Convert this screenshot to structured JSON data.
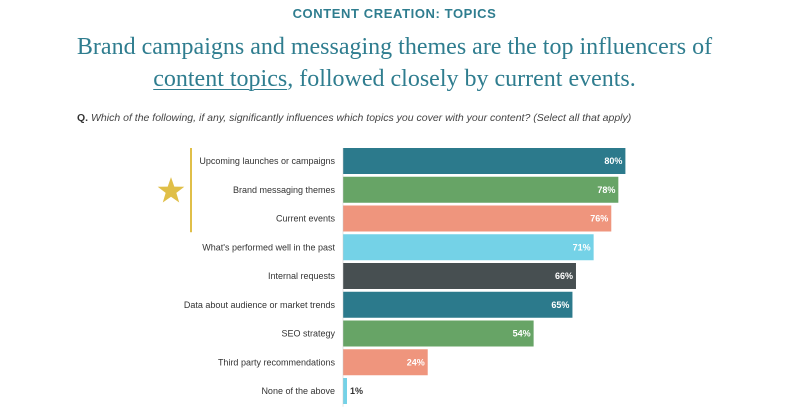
{
  "header": {
    "eyebrow": "CONTENT CREATION: TOPICS",
    "headline_line1": "Brand campaigns and messaging themes are the top influencers of",
    "headline_link": "content topics",
    "headline_line2_rest": ", followed closely by current events."
  },
  "question": {
    "prefix": "Q.",
    "text": "Which of the following, if any, significantly influences which topics you cover with your content? (Select all that apply)"
  },
  "colors": {
    "teal": "#2c7a8c",
    "green": "#67a466",
    "salmon": "#ef957d",
    "light_blue": "#74d2e7",
    "slate": "#474f51",
    "gold": "#e0bf48"
  },
  "icons": {
    "highlight": "star-icon"
  },
  "chart_data": {
    "type": "bar",
    "orientation": "horizontal",
    "unit": "%",
    "xlim": [
      0,
      100
    ],
    "categories": [
      "Upcoming launches or campaigns",
      "Brand messaging themes",
      "Current events",
      "What's performed well in the past",
      "Internal requests",
      "Data about audience or market trends",
      "SEO strategy",
      "Third party recommendations",
      "None of the above"
    ],
    "values": [
      80,
      78,
      76,
      71,
      66,
      65,
      54,
      24,
      1
    ],
    "labels": [
      "80%",
      "78%",
      "76%",
      "71%",
      "66%",
      "65%",
      "54%",
      "24%",
      "1%"
    ],
    "bar_colors": [
      "#2c7a8c",
      "#67a466",
      "#ef957d",
      "#74d2e7",
      "#474f51",
      "#2c7a8c",
      "#67a466",
      "#ef957d",
      "#74d2e7"
    ],
    "highlighted_top": 3
  }
}
